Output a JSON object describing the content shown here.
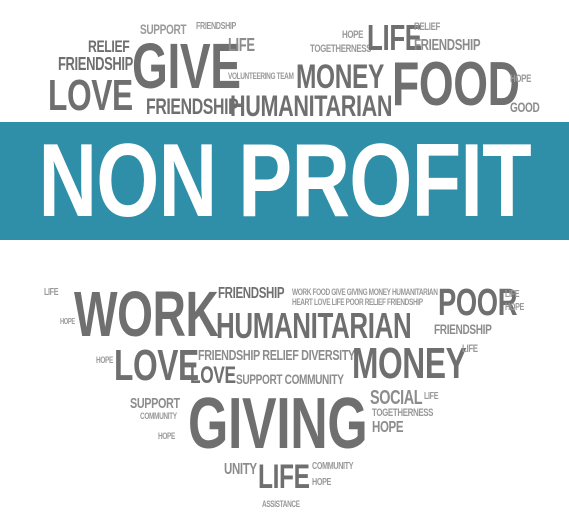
{
  "image": {
    "title": "NON PROFIT",
    "colors": {
      "banner": "#2f8fa8",
      "title_text": "#ffffff",
      "words": "#7a7a7a"
    }
  },
  "words": {
    "support1": "SUPPORT",
    "friendship1": "FRIENDSHIP",
    "relief1": "RELIEF",
    "friendship2": "FRIENDSHIP",
    "give": "GIVE",
    "love1": "LOVE",
    "life1": "LIFE",
    "volunteering": "VOLUNTEERING TEAM",
    "friendship3": "FRIENDSHIP",
    "hope1": "HOPE",
    "togetherness1": "TOGETHERNESS",
    "money1": "MONEY",
    "humanitarian1": "HUMANITARIAN",
    "life2": "LIFE",
    "relief2": "RELIEF",
    "friendship4": "FRIENDSHIP",
    "food": "FOOD",
    "hope2": "HOPE",
    "good": "GOOD",
    "life3": "LIFE",
    "hope3": "HOPE",
    "work": "WORK",
    "friendship5": "FRIENDSHIP",
    "food_line": "WORK FOOD GIVE GIVING MONEY HUMANITARIAN",
    "heart_line": "HEART LOVE LIFE POOR RELIEF FRIENDSHIP",
    "poor": "POOR",
    "life4": "LIFE",
    "hope4": "HOPE",
    "humanitarian2": "HUMANITARIAN",
    "friendship6": "FRIENDSHIP",
    "love2": "LOVE",
    "friendship7": "FRIENDSHIP RELIEF DIVERSITY",
    "love3": "LOVE",
    "support2": "SUPPORT COMMUNITY",
    "money2": "MONEY",
    "life5": "LIFE",
    "hope5": "HOPE",
    "support3": "SUPPORT",
    "community1": "COMMUNITY",
    "hope6": "HOPE",
    "giving": "GIVING",
    "social": "SOCIAL",
    "togetherness2": "TOGETHERNESS",
    "hope7": "HOPE",
    "life6": "LIFE",
    "unity": "UNITY",
    "life7": "LIFE",
    "community2": "COMMUNITY",
    "hope8": "HOPE",
    "assistance": "ASSISTANCE"
  }
}
